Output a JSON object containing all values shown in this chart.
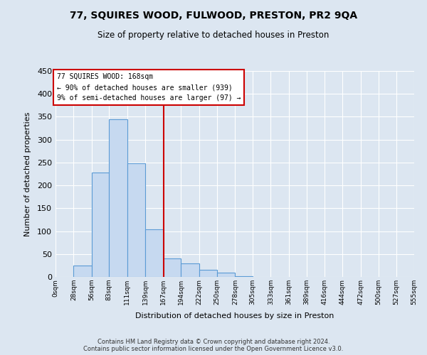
{
  "title": "77, SQUIRES WOOD, FULWOOD, PRESTON, PR2 9QA",
  "subtitle": "Size of property relative to detached houses in Preston",
  "xlabel": "Distribution of detached houses by size in Preston",
  "ylabel": "Number of detached properties",
  "bar_color": "#c6d9f0",
  "bar_edge_color": "#5b9bd5",
  "bin_edges": [
    0,
    28,
    56,
    83,
    111,
    139,
    167,
    194,
    222,
    250,
    278,
    305,
    333,
    361,
    389,
    416,
    444,
    472,
    500,
    527,
    555
  ],
  "bar_heights": [
    0,
    25,
    228,
    344,
    248,
    104,
    41,
    30,
    15,
    10,
    2,
    0,
    0,
    0,
    0,
    0,
    0,
    0,
    0,
    0
  ],
  "tick_labels": [
    "0sqm",
    "28sqm",
    "56sqm",
    "83sqm",
    "111sqm",
    "139sqm",
    "167sqm",
    "194sqm",
    "222sqm",
    "250sqm",
    "278sqm",
    "305sqm",
    "333sqm",
    "361sqm",
    "389sqm",
    "416sqm",
    "444sqm",
    "472sqm",
    "500sqm",
    "527sqm",
    "555sqm"
  ],
  "vline_color": "#cc0000",
  "vline_x": 167,
  "annotation_title": "77 SQUIRES WOOD: 168sqm",
  "annotation_line1": "← 90% of detached houses are smaller (939)",
  "annotation_line2": "9% of semi-detached houses are larger (97) →",
  "annotation_box_color": "#cc0000",
  "ylim": [
    0,
    450
  ],
  "yticks": [
    0,
    50,
    100,
    150,
    200,
    250,
    300,
    350,
    400,
    450
  ],
  "background_color": "#dce6f1",
  "plot_bg_color": "#dce6f1",
  "grid_color": "#ffffff",
  "footer_line1": "Contains HM Land Registry data © Crown copyright and database right 2024.",
  "footer_line2": "Contains public sector information licensed under the Open Government Licence v3.0."
}
